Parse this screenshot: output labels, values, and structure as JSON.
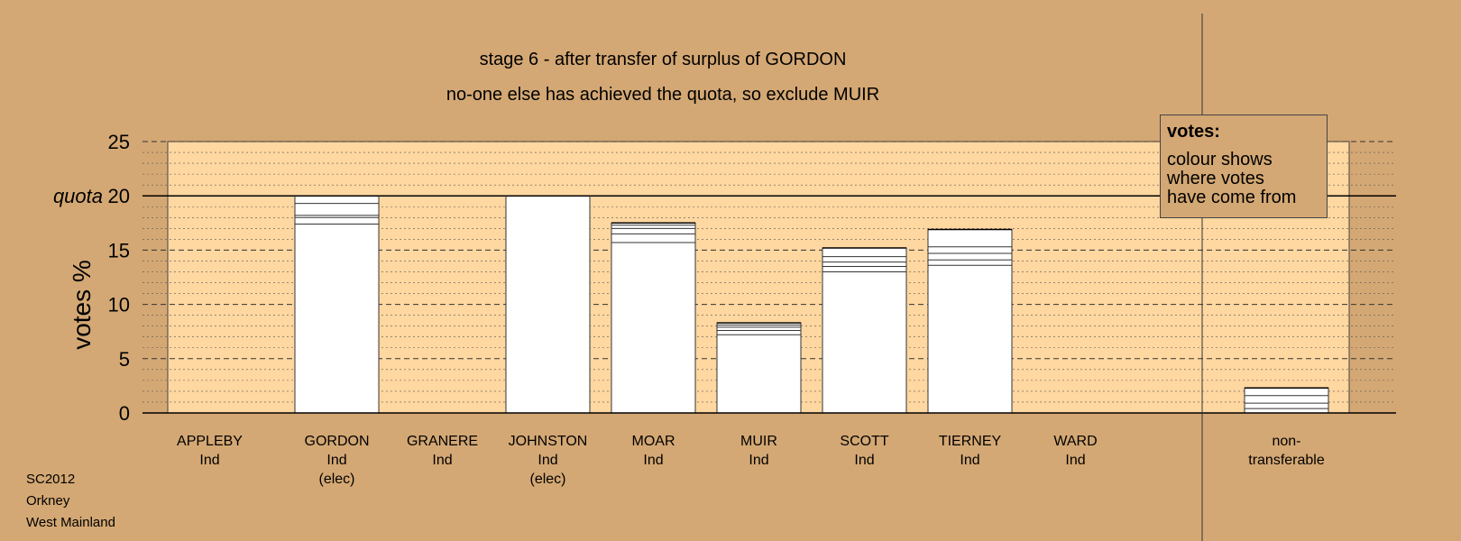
{
  "chart_data": {
    "type": "bar",
    "title": "stage 6 - after transfer of surplus of GORDON",
    "subtitle": "no-one else has achieved the quota, so exclude MUIR",
    "ylabel": "votes %",
    "quota_label": "quota",
    "quota": 20,
    "ylim": [
      0,
      25
    ],
    "yticks": [
      0,
      5,
      10,
      15,
      20,
      25
    ],
    "grid": true,
    "categories": [
      {
        "name": "APPLEBY",
        "party": "Ind",
        "note": ""
      },
      {
        "name": "GORDON",
        "party": "Ind",
        "note": "(elec)"
      },
      {
        "name": "GRANERE",
        "party": "Ind",
        "note": ""
      },
      {
        "name": "JOHNSTON",
        "party": "Ind",
        "note": "(elec)"
      },
      {
        "name": "MOAR",
        "party": "Ind",
        "note": ""
      },
      {
        "name": "MUIR",
        "party": "Ind",
        "note": ""
      },
      {
        "name": "SCOTT",
        "party": "Ind",
        "note": ""
      },
      {
        "name": "TIERNEY",
        "party": "Ind",
        "note": ""
      },
      {
        "name": "WARD",
        "party": "Ind",
        "note": ""
      },
      {
        "name": "non-",
        "party": "transferable",
        "note": ""
      }
    ],
    "values": [
      0,
      20.0,
      0,
      20.0,
      17.5,
      8.3,
      15.2,
      16.9,
      0,
      2.3
    ],
    "segment_boundaries": [
      [],
      [
        17.4,
        18.0,
        18.2,
        19.3
      ],
      [],
      [],
      [
        15.7,
        16.5,
        17.0,
        17.3
      ],
      [
        7.2,
        7.6,
        7.9,
        8.1
      ],
      [
        13.0,
        13.5,
        13.9,
        14.4
      ],
      [
        13.6,
        14.1,
        14.7,
        15.3
      ],
      [],
      [
        0.4,
        0.9,
        1.6
      ]
    ],
    "colors": {
      "background": "#d4a874",
      "plot_area": "#ffd7a0",
      "bar": "#ffffff",
      "line": "#000000"
    }
  },
  "legend": {
    "title": "votes:",
    "lines": [
      "colour shows",
      "where votes",
      "have come from"
    ]
  },
  "footer": {
    "lines": [
      "SC2012",
      "Orkney",
      "West Mainland"
    ]
  }
}
